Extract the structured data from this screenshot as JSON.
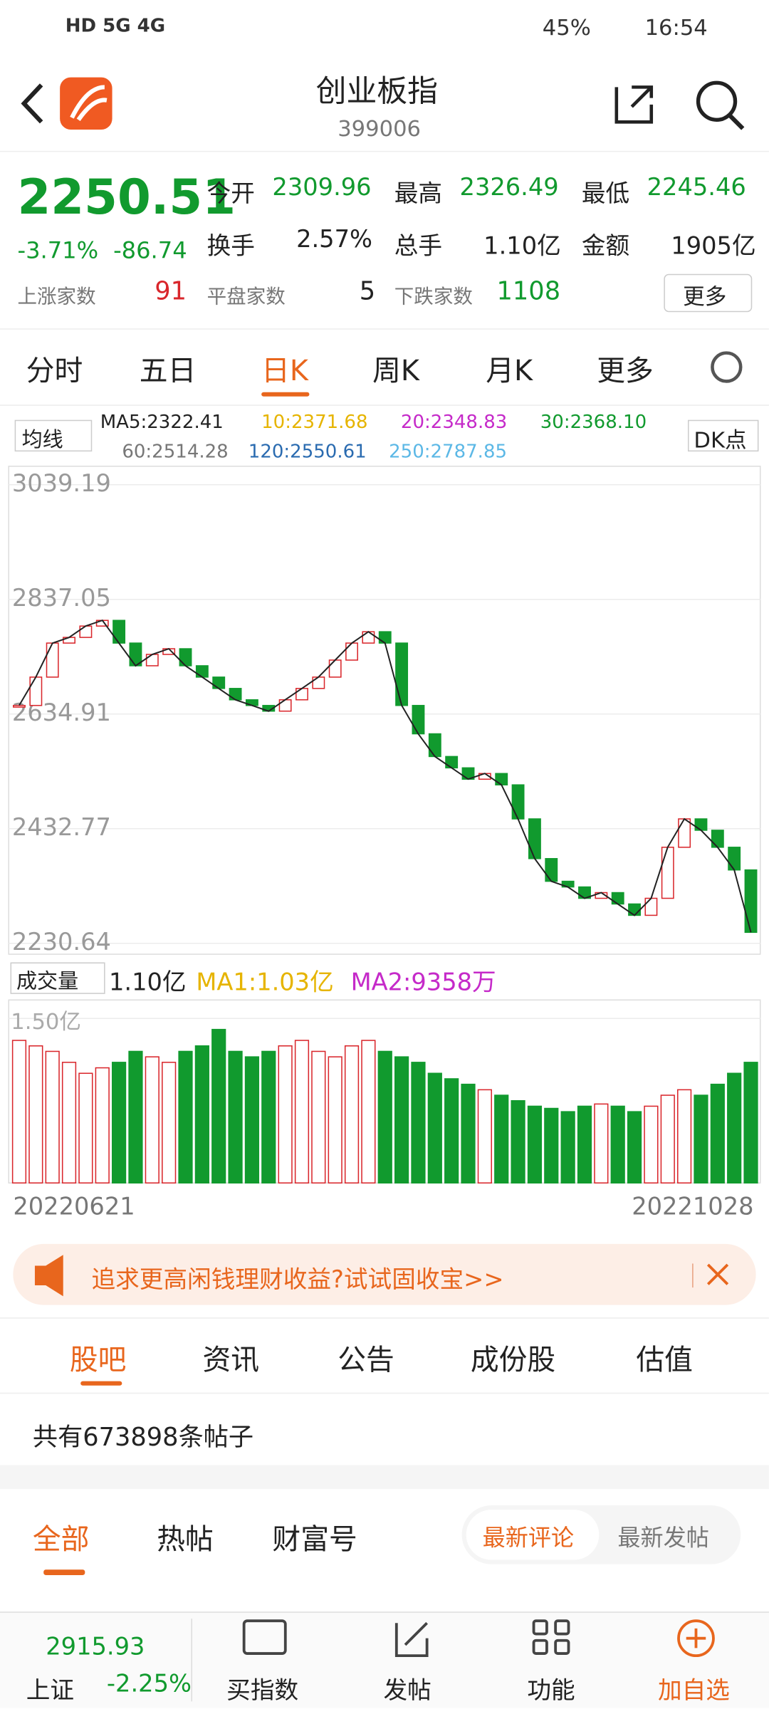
{
  "status": {
    "left": "HD 5G 4G",
    "battery": "45%",
    "time": "16:54"
  },
  "header": {
    "title": "创业板指",
    "code": "399006"
  },
  "quote": {
    "price": "2250.51",
    "change_pct": "-3.71%",
    "change": "-86.74",
    "fields": [
      [
        "今开",
        "2309.96"
      ],
      [
        "最高",
        "2326.49"
      ],
      [
        "最低",
        "2245.46"
      ],
      [
        "换手",
        "2.57%"
      ],
      [
        "总手",
        "1.10亿"
      ],
      [
        "金额",
        "1905亿"
      ]
    ],
    "breadth": [
      [
        "上涨家数",
        "91"
      ],
      [
        "平盘家数",
        "5"
      ],
      [
        "下跌家数",
        "1108"
      ]
    ],
    "more": "更多"
  },
  "tabs": [
    "分时",
    "五日",
    "日K",
    "周K",
    "月K",
    "更多"
  ],
  "ma": {
    "selector": "均线",
    "items": [
      "MA5:2322.41",
      "10:2371.68",
      "20:2348.83",
      "30:2368.10",
      "60:2514.28",
      "120:2550.61",
      "250:2787.85"
    ],
    "dk": "DK点"
  },
  "kline": {
    "ylim": [
      2230.64,
      3039.19
    ],
    "yticks": [
      3039.19,
      2837.05,
      2634.91,
      2432.77,
      2230.64
    ],
    "close": [
      2650,
      2700,
      2760,
      2770,
      2790,
      2800,
      2760,
      2720,
      2740,
      2750,
      2720,
      2700,
      2680,
      2660,
      2650,
      2640,
      2660,
      2680,
      2700,
      2730,
      2760,
      2780,
      2760,
      2650,
      2600,
      2560,
      2540,
      2520,
      2530,
      2510,
      2450,
      2380,
      2340,
      2330,
      2310,
      2320,
      2300,
      2280,
      2310,
      2400,
      2450,
      2430,
      2400,
      2360,
      2250
    ],
    "x_start": "20220621",
    "x_end": "20221028"
  },
  "volume": {
    "selector": "成交量",
    "current": "1.10亿",
    "ma1": "MA1:1.03亿",
    "ma2": "MA2:9358万",
    "ylim": [
      0,
      1.5
    ],
    "yticks": [
      {
        "value": 1.5,
        "label": "1.50亿"
      }
    ],
    "values": [
      1.3,
      1.25,
      1.2,
      1.1,
      1.0,
      1.05,
      1.1,
      1.2,
      1.15,
      1.1,
      1.2,
      1.25,
      1.4,
      1.2,
      1.15,
      1.2,
      1.25,
      1.3,
      1.2,
      1.15,
      1.25,
      1.3,
      1.2,
      1.15,
      1.1,
      1.0,
      0.95,
      0.9,
      0.85,
      0.8,
      0.75,
      0.7,
      0.68,
      0.65,
      0.7,
      0.72,
      0.7,
      0.65,
      0.7,
      0.8,
      0.85,
      0.8,
      0.9,
      1.0,
      1.1
    ]
  },
  "banner": "追求更高闲钱理财收益?试试固收宝>>",
  "section_tabs": [
    "股吧",
    "资讯",
    "公告",
    "成份股",
    "估值"
  ],
  "post_count": "共有673898条帖子",
  "post_tabs": [
    "全部",
    "热帖",
    "财富号"
  ],
  "sort": [
    "最新评论",
    "最新发帖"
  ],
  "bottom": {
    "index_value": "2915.93",
    "index_name": "上证",
    "index_change": "-2.25%",
    "items": [
      "买指数",
      "发帖",
      "功能",
      "加自选"
    ]
  }
}
